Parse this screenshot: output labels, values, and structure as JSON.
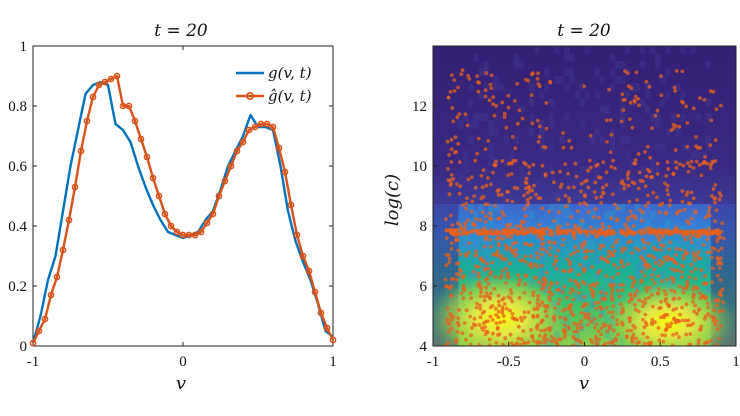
{
  "chart_data": [
    {
      "type": "line",
      "title": "t = 20",
      "xlabel": "v",
      "ylabel": "",
      "xlim": [
        -1,
        1
      ],
      "ylim": [
        0,
        1
      ],
      "xticks": [
        -1,
        0,
        1
      ],
      "yticks": [
        0,
        0.2,
        0.4,
        0.6,
        0.8,
        1
      ],
      "xtick_labels": [
        "-1",
        "0",
        "1"
      ],
      "ytick_labels": [
        "0",
        "0.2",
        "0.4",
        "0.6",
        "0.8",
        "1"
      ],
      "legend": "top-right",
      "series": [
        {
          "name": "g(v, t)",
          "color": "#0072BD",
          "x": [
            -1.0,
            -0.95,
            -0.9,
            -0.85,
            -0.8,
            -0.75,
            -0.7,
            -0.65,
            -0.6,
            -0.55,
            -0.5,
            -0.45,
            -0.4,
            -0.35,
            -0.3,
            -0.25,
            -0.2,
            -0.15,
            -0.1,
            -0.05,
            0.0,
            0.05,
            0.1,
            0.15,
            0.2,
            0.25,
            0.3,
            0.35,
            0.4,
            0.45,
            0.5,
            0.55,
            0.6,
            0.65,
            0.7,
            0.75,
            0.8,
            0.85,
            0.9,
            0.95,
            1.0
          ],
          "y": [
            0.01,
            0.1,
            0.22,
            0.3,
            0.45,
            0.6,
            0.72,
            0.84,
            0.87,
            0.88,
            0.87,
            0.74,
            0.72,
            0.68,
            0.6,
            0.53,
            0.47,
            0.42,
            0.38,
            0.37,
            0.36,
            0.37,
            0.38,
            0.42,
            0.45,
            0.52,
            0.6,
            0.65,
            0.7,
            0.77,
            0.73,
            0.73,
            0.72,
            0.6,
            0.45,
            0.35,
            0.28,
            0.22,
            0.14,
            0.05,
            0.03
          ]
        },
        {
          "name": "ĝ(v, t)",
          "color": "#D95319",
          "x": [
            -1.0,
            -0.96,
            -0.92,
            -0.88,
            -0.84,
            -0.8,
            -0.76,
            -0.72,
            -0.68,
            -0.64,
            -0.6,
            -0.56,
            -0.52,
            -0.48,
            -0.44,
            -0.4,
            -0.36,
            -0.32,
            -0.28,
            -0.24,
            -0.2,
            -0.16,
            -0.12,
            -0.08,
            -0.04,
            0.0,
            0.04,
            0.08,
            0.12,
            0.16,
            0.2,
            0.24,
            0.28,
            0.32,
            0.36,
            0.4,
            0.44,
            0.48,
            0.52,
            0.56,
            0.6,
            0.64,
            0.68,
            0.72,
            0.76,
            0.8,
            0.84,
            0.88,
            0.92,
            0.96,
            1.0
          ],
          "y": [
            0.01,
            0.05,
            0.09,
            0.17,
            0.23,
            0.32,
            0.42,
            0.53,
            0.65,
            0.75,
            0.83,
            0.87,
            0.88,
            0.89,
            0.9,
            0.8,
            0.8,
            0.75,
            0.69,
            0.63,
            0.56,
            0.5,
            0.44,
            0.4,
            0.38,
            0.37,
            0.37,
            0.37,
            0.38,
            0.41,
            0.44,
            0.5,
            0.55,
            0.6,
            0.65,
            0.68,
            0.72,
            0.73,
            0.74,
            0.74,
            0.73,
            0.66,
            0.58,
            0.47,
            0.37,
            0.3,
            0.25,
            0.18,
            0.11,
            0.06,
            0.02
          ]
        }
      ]
    },
    {
      "type": "heatmap",
      "title": "t = 20",
      "xlabel": "v",
      "ylabel": "log(c)",
      "xlim": [
        -1,
        1
      ],
      "ylim": [
        4,
        14
      ],
      "xticks": [
        -1,
        -0.5,
        0,
        0.5,
        1
      ],
      "yticks": [
        4,
        6,
        8,
        10,
        12
      ],
      "xtick_labels": [
        "-1",
        "-0.5",
        "0",
        "0.5",
        "1"
      ],
      "ytick_labels": [
        "4",
        "6",
        "8",
        "10",
        "12"
      ],
      "colormap": "parula",
      "overlay_points_color": "#E8601C",
      "note_boundary_logc": 8.8
    }
  ]
}
